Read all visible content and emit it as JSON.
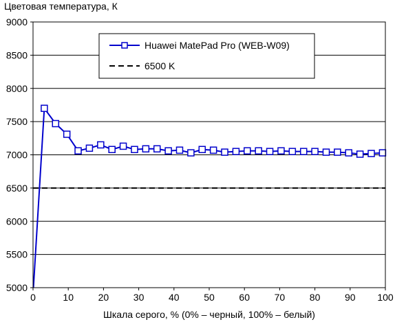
{
  "chart_data": {
    "type": "line",
    "title": "Цветовая температура, К",
    "xlabel": "Шкала серого, % (0% – черный, 100% – белый)",
    "ylabel": "",
    "xlim": [
      0,
      100
    ],
    "ylim": [
      5000,
      9000
    ],
    "xticks": [
      0,
      10,
      20,
      30,
      40,
      50,
      60,
      70,
      80,
      90,
      100
    ],
    "yticks": [
      5000,
      5500,
      6000,
      6500,
      7000,
      7500,
      8000,
      8500,
      9000
    ],
    "grid": "horizontal",
    "legend_position": "top-center",
    "series": [
      {
        "name": "Huawei MatePad Pro (WEB-W09)",
        "color": "#0000cc",
        "marker": "square",
        "x": [
          0,
          3.2,
          6.4,
          9.6,
          12.8,
          16,
          19.2,
          22.4,
          25.6,
          28.8,
          32,
          35.2,
          38.4,
          41.6,
          44.8,
          48,
          51.2,
          54.4,
          57.6,
          60.8,
          64,
          67.2,
          70.4,
          73.6,
          76.8,
          80,
          83.2,
          86.4,
          89.6,
          92.8,
          96,
          99.2
        ],
        "y": [
          4900,
          7700,
          7470,
          7310,
          7060,
          7100,
          7150,
          7080,
          7130,
          7080,
          7090,
          7090,
          7060,
          7070,
          7030,
          7080,
          7070,
          7040,
          7050,
          7060,
          7060,
          7050,
          7060,
          7050,
          7050,
          7050,
          7040,
          7040,
          7030,
          7010,
          7020,
          7030
        ],
        "markers_from_index": 1
      },
      {
        "name": "6500 K",
        "color": "#000000",
        "dash": true,
        "x": [
          0,
          100
        ],
        "y": [
          6500,
          6500
        ]
      }
    ]
  }
}
